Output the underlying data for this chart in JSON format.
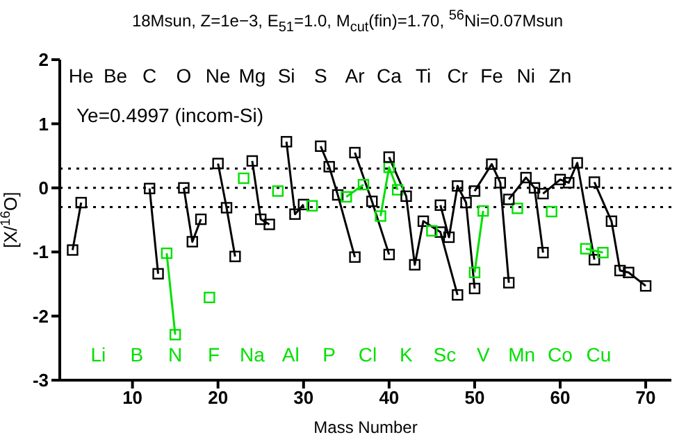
{
  "chart_data": {
    "type": "line",
    "title": "18Msun, Z=1e−3, E$_{51}$=1.0, M$_{cut}$(fin)=1.70, $^{56}$Ni=0.07Msun",
    "xlabel": "Mass Number",
    "ylabel": "[X/$^{16}$O]",
    "xlim": [
      1.5,
      73
    ],
    "xticks": [
      10,
      20,
      30,
      40,
      50,
      60,
      70
    ],
    "ylim": [
      -3,
      2
    ],
    "yticks": [
      -3,
      -2,
      -1,
      0,
      1,
      2
    ],
    "grid": false,
    "marker": "square",
    "line_style": "solid",
    "ref_lines": [
      {
        "axis": "y",
        "value": 0.3,
        "color": "#000000",
        "line_style": "dotted"
      },
      {
        "axis": "y",
        "value": 0,
        "color": "#000000",
        "line_style": "dotted"
      },
      {
        "axis": "y",
        "value": -0.3,
        "color": "#000000",
        "line_style": "dotted"
      }
    ],
    "series": [
      {
        "color": "#000000",
        "x": [
          3,
          4
        ],
        "values": [
          -0.97,
          -0.23
        ]
      },
      {
        "color": "#000000",
        "x": [
          12,
          13
        ],
        "values": [
          -0.01,
          -1.34
        ]
      },
      {
        "color": "#00e000",
        "x": [
          14,
          15
        ],
        "values": [
          -1.02,
          -2.29
        ]
      },
      {
        "color": "#000000",
        "x": [
          16,
          17,
          18
        ],
        "values": [
          0.0,
          -0.84,
          -0.49
        ]
      },
      {
        "color": "#00e000",
        "x": [
          19
        ],
        "values": [
          -1.71
        ]
      },
      {
        "color": "#000000",
        "x": [
          20,
          21,
          22
        ],
        "values": [
          0.38,
          -0.31,
          -1.07
        ]
      },
      {
        "color": "#00e000",
        "x": [
          23
        ],
        "values": [
          0.15
        ]
      },
      {
        "color": "#000000",
        "x": [
          24,
          25,
          26
        ],
        "values": [
          0.42,
          -0.49,
          -0.57
        ]
      },
      {
        "color": "#00e000",
        "x": [
          27
        ],
        "values": [
          -0.05
        ]
      },
      {
        "color": "#000000",
        "x": [
          28,
          29,
          30
        ],
        "values": [
          0.72,
          -0.41,
          -0.26
        ]
      },
      {
        "color": "#00e000",
        "x": [
          31
        ],
        "values": [
          -0.28
        ]
      },
      {
        "color": "#000000",
        "x": [
          32,
          33,
          34,
          36
        ],
        "values": [
          0.65,
          0.33,
          -0.11,
          -1.08
        ]
      },
      {
        "color": "#00e000",
        "x": [
          35,
          37
        ],
        "values": [
          -0.14,
          0.05
        ]
      },
      {
        "color": "#000000",
        "x": [
          36,
          38,
          40
        ],
        "values": [
          0.55,
          -0.21,
          -1.04
        ]
      },
      {
        "color": "#00e000",
        "x": [
          39,
          40,
          41
        ],
        "values": [
          -0.44,
          0.32,
          -0.03
        ]
      },
      {
        "color": "#000000",
        "x": [
          40,
          42,
          43,
          44,
          46,
          48
        ],
        "values": [
          0.48,
          -0.13,
          -1.2,
          -0.52,
          -0.69,
          -1.67
        ]
      },
      {
        "color": "#00e000",
        "x": [
          45
        ],
        "values": [
          -0.67
        ]
      },
      {
        "color": "#000000",
        "x": [
          46,
          47,
          48,
          49,
          50
        ],
        "values": [
          -0.27,
          -0.77,
          0.03,
          -0.23,
          -1.57
        ]
      },
      {
        "color": "#00e000",
        "x": [
          50,
          51
        ],
        "values": [
          -1.32,
          -0.36
        ]
      },
      {
        "color": "#000000",
        "x": [
          50,
          52,
          53,
          54
        ],
        "values": [
          -0.05,
          0.37,
          0.08,
          -1.48
        ]
      },
      {
        "color": "#00e000",
        "x": [
          55
        ],
        "values": [
          -0.32
        ]
      },
      {
        "color": "#000000",
        "x": [
          54,
          56,
          57,
          58
        ],
        "values": [
          -0.18,
          0.16,
          0.0,
          -1.01
        ]
      },
      {
        "color": "#00e000",
        "x": [
          59
        ],
        "values": [
          -0.37
        ]
      },
      {
        "color": "#000000",
        "x": [
          58,
          60,
          61,
          62,
          64
        ],
        "values": [
          -0.09,
          0.13,
          0.08,
          0.39,
          -1.12
        ]
      },
      {
        "color": "#00e000",
        "x": [
          63,
          65
        ],
        "values": [
          -0.95,
          -1.01
        ]
      },
      {
        "color": "#000000",
        "x": [
          64,
          66,
          67,
          68,
          70
        ],
        "values": [
          0.09,
          -0.52,
          -1.29,
          -1.32,
          -1.53
        ]
      }
    ],
    "annotations": [
      "Ye=0.4997 (incom-Si)",
      "He Be C O Ne Mg Si S Ar Ca Ti Cr Fe Ni Zn",
      "Li B N F Na Al P Cl K Sc V Mn Co Cu"
    ]
  }
}
